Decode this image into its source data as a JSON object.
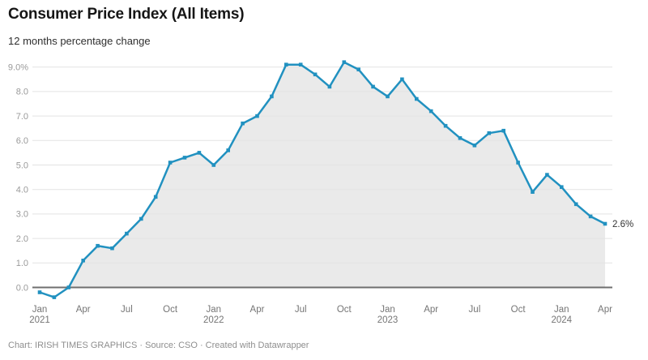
{
  "header": {
    "title": "Consumer Price Index (All Items)",
    "subtitle": "12 months percentage change"
  },
  "footer": {
    "text": "Chart: IRISH TIMES GRAPHICS · Source: CSO · Created with Datawrapper"
  },
  "chart_data": {
    "type": "area",
    "title": "Consumer Price Index (All Items)",
    "subtitle": "12 months percentage change",
    "series_name": "CPI 12-month percentage change",
    "x": [
      "Jan 2021",
      "Feb 2021",
      "Mar 2021",
      "Apr 2021",
      "May 2021",
      "Jun 2021",
      "Jul 2021",
      "Aug 2021",
      "Sep 2021",
      "Oct 2021",
      "Nov 2021",
      "Dec 2021",
      "Jan 2022",
      "Feb 2022",
      "Mar 2022",
      "Apr 2022",
      "May 2022",
      "Jun 2022",
      "Jul 2022",
      "Aug 2022",
      "Sep 2022",
      "Oct 2022",
      "Nov 2022",
      "Dec 2022",
      "Jan 2023",
      "Feb 2023",
      "Mar 2023",
      "Apr 2023",
      "May 2023",
      "Jun 2023",
      "Jul 2023",
      "Aug 2023",
      "Sep 2023",
      "Oct 2023",
      "Nov 2023",
      "Dec 2023",
      "Jan 2024",
      "Feb 2024",
      "Mar 2024",
      "Apr 2024"
    ],
    "values": [
      -0.2,
      -0.4,
      0.0,
      1.1,
      1.7,
      1.6,
      2.2,
      2.8,
      3.7,
      5.1,
      5.3,
      5.5,
      5.0,
      5.6,
      6.7,
      7.0,
      7.8,
      9.1,
      9.1,
      8.7,
      8.2,
      9.2,
      8.9,
      8.2,
      7.8,
      8.5,
      7.7,
      7.2,
      6.6,
      6.1,
      5.8,
      6.3,
      6.4,
      5.1,
      3.9,
      4.6,
      4.1,
      3.4,
      2.9,
      2.6
    ],
    "unit": "%",
    "ylim": [
      -0.6,
      9.6
    ],
    "grid": true,
    "legend": "none",
    "y_ticks": [
      {
        "value": 9,
        "label": "9.0%"
      },
      {
        "value": 8,
        "label": "8.0"
      },
      {
        "value": 7,
        "label": "7.0"
      },
      {
        "value": 6,
        "label": "6.0"
      },
      {
        "value": 5,
        "label": "5.0"
      },
      {
        "value": 4,
        "label": "4.0"
      },
      {
        "value": 3,
        "label": "3.0"
      },
      {
        "value": 2,
        "label": "2.0"
      },
      {
        "value": 1,
        "label": "1.0"
      },
      {
        "value": 0,
        "label": "0.0"
      }
    ],
    "x_ticks": [
      {
        "index": 0,
        "label": "Jan",
        "year": "2021"
      },
      {
        "index": 3,
        "label": "Apr"
      },
      {
        "index": 6,
        "label": "Jul"
      },
      {
        "index": 9,
        "label": "Oct"
      },
      {
        "index": 12,
        "label": "Jan",
        "year": "2022"
      },
      {
        "index": 15,
        "label": "Apr"
      },
      {
        "index": 18,
        "label": "Jul"
      },
      {
        "index": 21,
        "label": "Oct"
      },
      {
        "index": 24,
        "label": "Jan",
        "year": "2023"
      },
      {
        "index": 27,
        "label": "Apr"
      },
      {
        "index": 30,
        "label": "Jul"
      },
      {
        "index": 33,
        "label": "Oct"
      },
      {
        "index": 36,
        "label": "Jan",
        "year": "2024"
      },
      {
        "index": 39,
        "label": "Apr"
      }
    ],
    "end_label": "2.6%",
    "colors": {
      "line": "#2191c0",
      "area": "#eaeaea",
      "grid": "#e3e3e3",
      "zero_line": "#6f6f6f",
      "y_tick_label": "#9a9a9a",
      "x_tick_label": "#757575",
      "end_label": "#333333"
    }
  }
}
